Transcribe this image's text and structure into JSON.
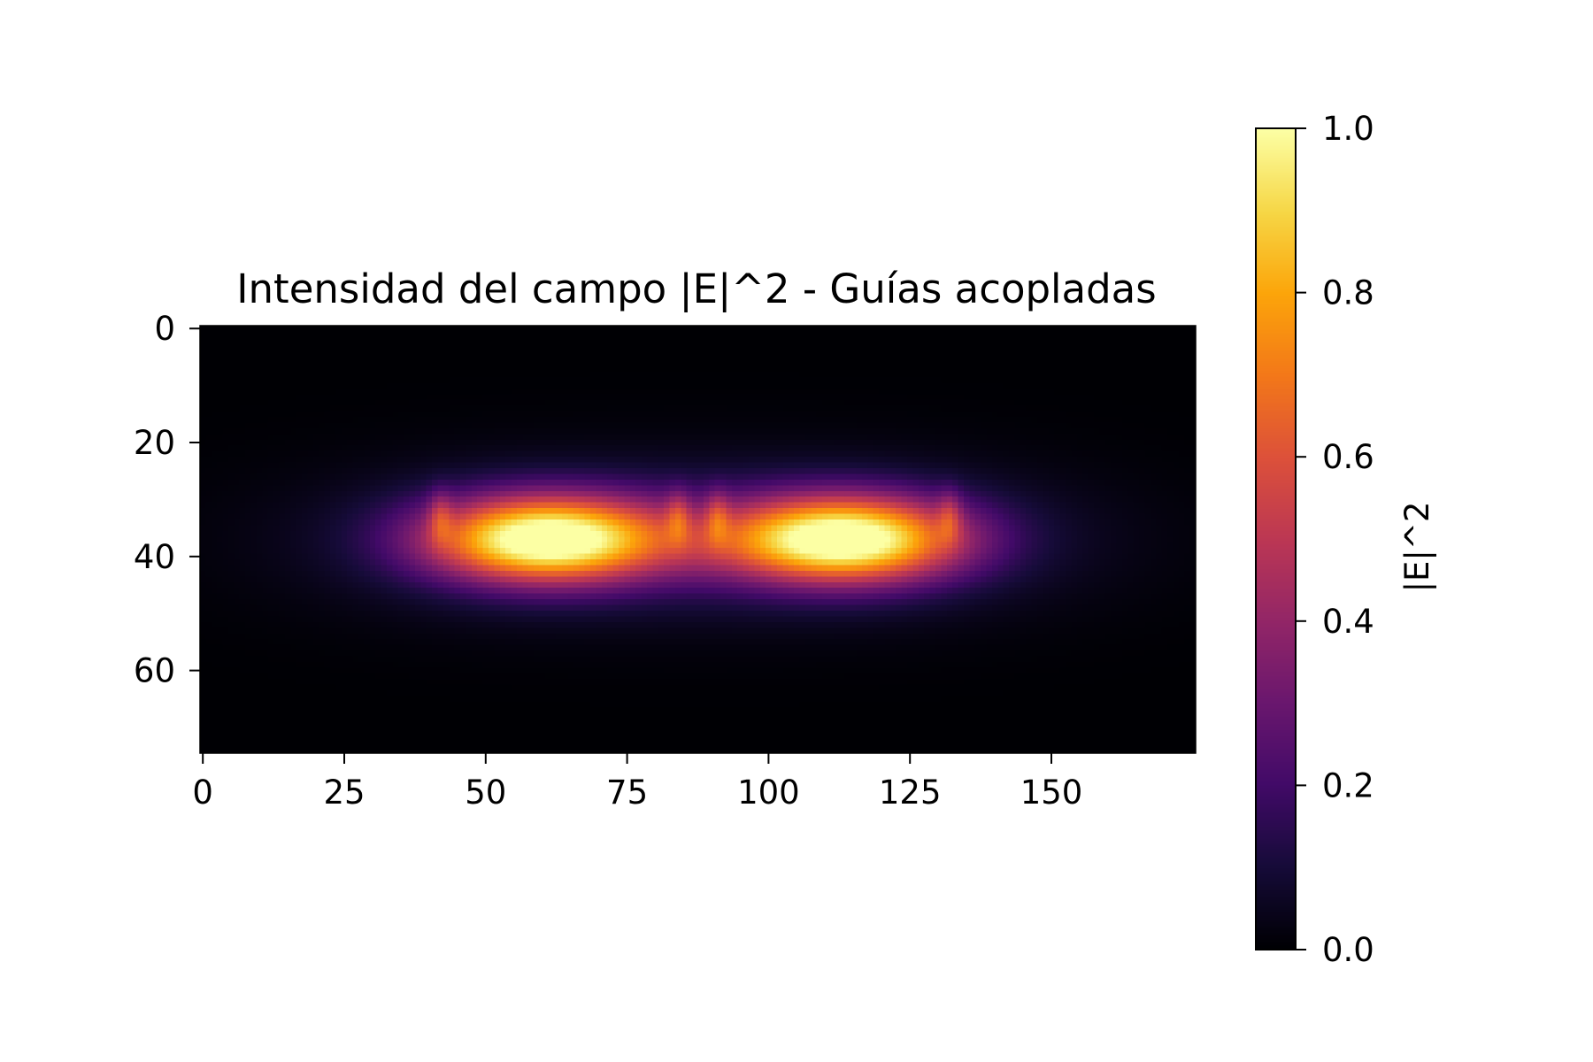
{
  "chart_data": {
    "type": "heatmap",
    "title": "Intensidad del campo |E|^2 - Guías acopladas",
    "xlabel": "",
    "ylabel": "",
    "colormap": "inferno",
    "x_ticks": [
      "0",
      "25",
      "50",
      "75",
      "100",
      "125",
      "150"
    ],
    "y_ticks": [
      "0",
      "20",
      "40",
      "60"
    ],
    "xlim": [
      -0.5,
      175.5
    ],
    "ylim": [
      74.5,
      -0.5
    ],
    "grid": false,
    "colorbar": {
      "label": "|E|^2",
      "range": [
        0.0,
        1.0
      ],
      "ticks": [
        "0.0",
        "0.2",
        "0.4",
        "0.6",
        "0.8",
        "1.0"
      ]
    },
    "field": {
      "rows": 75,
      "cols": 176,
      "peaks": [
        {
          "x": 61,
          "y": 37,
          "value": 1.0
        },
        {
          "x": 113,
          "y": 37,
          "value": 1.0
        }
      ],
      "side_lobes_x": [
        42,
        84,
        91,
        132
      ],
      "side_lobes_y": 33
    }
  }
}
